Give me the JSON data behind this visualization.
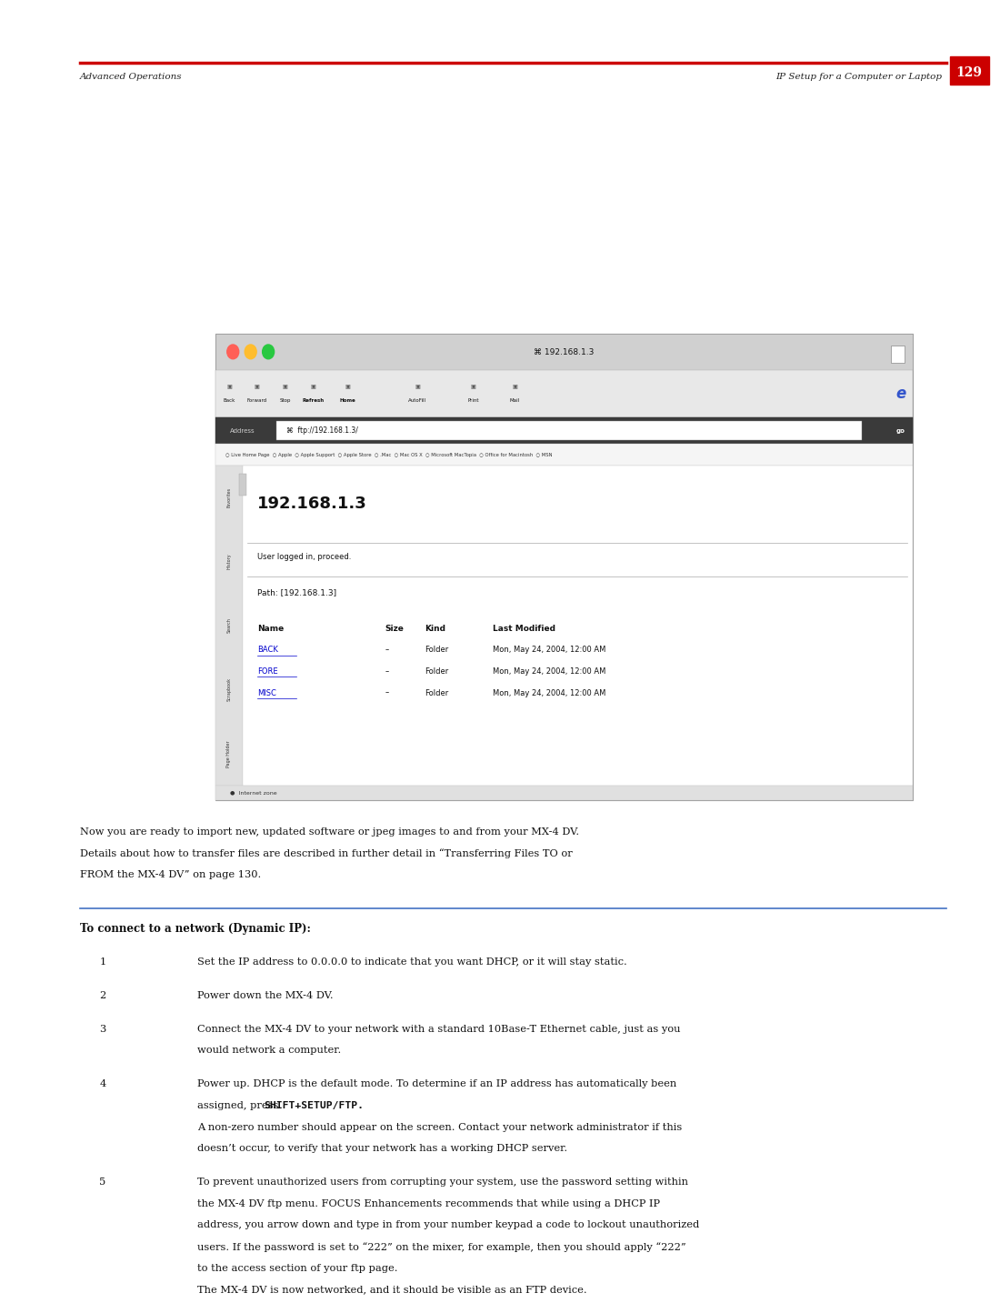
{
  "page_width": 10.8,
  "page_height": 13.97,
  "bg_color": "#ffffff",
  "header_line_color": "#cc0000",
  "header_left_text": "Advanced Operations",
  "header_right_text": "IP Setup for a Computer or Laptop",
  "page_number": "129",
  "browser_screenshot": {
    "title_bar_text": "⌘ 192.168.1.3",
    "address_bar_text": "ftp://192.168.1.3/",
    "main_heading": "192.168.1.3",
    "status_text": "User logged in, proceed.",
    "path_text": "Path: [192.168.1.3]",
    "table_headers": [
      "Name",
      "Size",
      "Kind",
      "Last Modified"
    ],
    "table_rows": [
      [
        "BACK",
        "–",
        "Folder",
        "Mon, May 24, 2004, 12:00 AM"
      ],
      [
        "FORE",
        "–",
        "Folder",
        "Mon, May 24, 2004, 12:00 AM"
      ],
      [
        "MISC",
        "–",
        "Folder",
        "Mon, May 24, 2004, 12:00 AM"
      ]
    ],
    "status_bar_text": "Internet zone",
    "sidebar_tabs": [
      "Favorites",
      "History",
      "Search",
      "Scrapbook",
      "Page Holder"
    ],
    "toolbar_buttons": [
      "Back",
      "Forward",
      "Stop",
      "Refresh",
      "Home",
      "AutoFill",
      "Print",
      "Mail"
    ],
    "bookmarks": "○ Live Home Page  ○ Apple  ○ Apple Support  ○ Apple Store  ○ .Mac  ○ Mac OS X  ○ Microsoft MacTopia  ○ Office for Macintosh  ○ MSN"
  },
  "body_paragraph": "Now you are ready to import new, updated software or jpeg images to and from your MX-4 DV.\nDetails about how to transfer files are described in further detail in “Transferring Files TO or\nFROM the MX-4 DV” on page 130.",
  "section_heading": "To connect to a network (Dynamic IP):",
  "section_line_color": "#4472c4",
  "steps": [
    {
      "number": "1",
      "text": "Set the IP address to 0.0.0.0 to indicate that you want DHCP, or it will stay static."
    },
    {
      "number": "2",
      "text": "Power down the MX-4 DV."
    },
    {
      "number": "3",
      "text": "Connect the MX-4 DV to your network with a standard 10Base-T Ethernet cable, just as you\nwould network a computer."
    },
    {
      "number": "4",
      "text": "Power up. DHCP is the default mode. To determine if an IP address has automatically been\nassigned, press SHIFT+SETUP/FTP.\nA non-zero number should appear on the screen. Contact your network administrator if this\ndoesn’t occur, to verify that your network has a working DHCP server."
    },
    {
      "number": "5",
      "text": "To prevent unauthorized users from corrupting your system, use the password setting within\nthe MX-4 DV ftp menu. FOCUS Enhancements recommends that while using a DHCP IP\naddress, you arrow down and type in from your number keypad a code to lockout unauthorized\nusers. If the password is set to “222” on the mixer, for example, then you should apply “222”\nto the access section of your ftp page.\nThe MX-4 DV is now networked, and it should be visible as an FTP device."
    }
  ],
  "bold_keyword": "SHIFT+SETUP/FTP."
}
